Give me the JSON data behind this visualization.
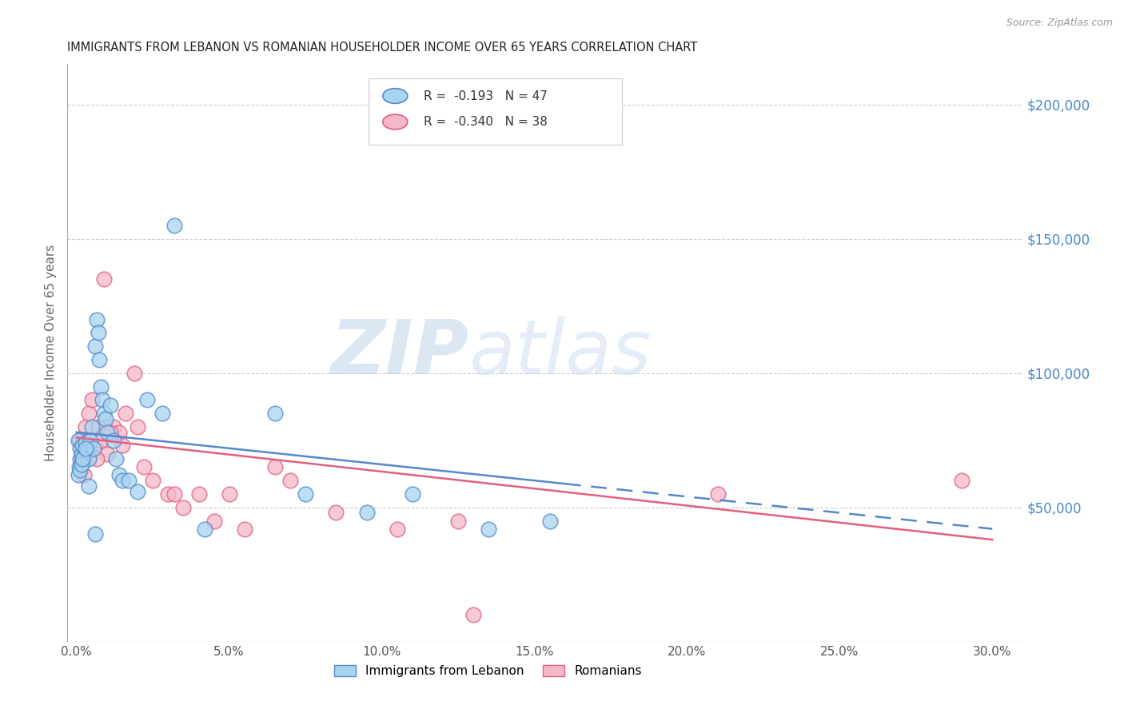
{
  "title": "IMMIGRANTS FROM LEBANON VS ROMANIAN HOUSEHOLDER INCOME OVER 65 YEARS CORRELATION CHART",
  "source": "Source: ZipAtlas.com",
  "ylabel": "Householder Income Over 65 years",
  "xlabel_ticks": [
    "0.0%",
    "5.0%",
    "10.0%",
    "15.0%",
    "20.0%",
    "25.0%",
    "30.0%"
  ],
  "xlabel_vals": [
    0.0,
    5.0,
    10.0,
    15.0,
    20.0,
    25.0,
    30.0
  ],
  "ytick_vals": [
    0,
    50000,
    100000,
    150000,
    200000
  ],
  "ytick_labels": [
    "",
    "$50,000",
    "$100,000",
    "$150,000",
    "$200,000"
  ],
  "ylim": [
    0,
    215000
  ],
  "xlim": [
    -0.3,
    31
  ],
  "series1_color": "#A8D4F0",
  "series2_color": "#F5B8C8",
  "trendline1_color": "#5588CC",
  "trendline2_color": "#E06080",
  "watermark_zip": "ZIP",
  "watermark_atlas": "atlas",
  "lebanon_x": [
    0.05,
    0.08,
    0.1,
    0.12,
    0.15,
    0.18,
    0.2,
    0.25,
    0.3,
    0.35,
    0.4,
    0.45,
    0.5,
    0.55,
    0.6,
    0.65,
    0.7,
    0.75,
    0.8,
    0.85,
    0.9,
    0.95,
    1.0,
    1.1,
    1.2,
    1.3,
    1.4,
    1.5,
    1.7,
    2.0,
    2.3,
    2.8,
    3.2,
    4.2,
    6.5,
    7.5,
    9.5,
    11.0,
    13.5,
    15.5,
    0.05,
    0.1,
    0.15,
    0.2,
    0.3,
    0.4,
    0.6
  ],
  "lebanon_y": [
    75000,
    65000,
    68000,
    72000,
    70000,
    67000,
    73000,
    69000,
    74000,
    71000,
    68000,
    75000,
    80000,
    72000,
    110000,
    120000,
    115000,
    105000,
    95000,
    90000,
    85000,
    83000,
    78000,
    88000,
    75000,
    68000,
    62000,
    60000,
    60000,
    56000,
    90000,
    85000,
    155000,
    42000,
    85000,
    55000,
    48000,
    55000,
    42000,
    45000,
    62000,
    64000,
    66000,
    68000,
    72000,
    58000,
    40000
  ],
  "romanian_x": [
    0.08,
    0.15,
    0.2,
    0.3,
    0.4,
    0.5,
    0.6,
    0.7,
    0.8,
    0.9,
    1.0,
    1.2,
    1.4,
    1.6,
    1.9,
    2.2,
    2.5,
    3.0,
    3.5,
    4.0,
    4.5,
    5.5,
    7.0,
    8.5,
    12.5,
    21.0,
    29.0,
    0.25,
    0.45,
    0.65,
    1.1,
    1.5,
    2.0,
    3.2,
    5.0,
    6.5,
    10.5,
    13.0
  ],
  "romanian_y": [
    75000,
    68000,
    72000,
    80000,
    85000,
    90000,
    73000,
    80000,
    75000,
    135000,
    70000,
    80000,
    78000,
    85000,
    100000,
    65000,
    60000,
    55000,
    50000,
    55000,
    45000,
    42000,
    60000,
    48000,
    45000,
    55000,
    60000,
    62000,
    70000,
    68000,
    78000,
    73000,
    80000,
    55000,
    55000,
    65000,
    42000,
    10000
  ],
  "trendline1_x0": 0,
  "trendline1_x1": 30,
  "trendline1_y0": 78000,
  "trendline1_y1": 42000,
  "trendline2_x0": 0,
  "trendline2_x1": 30,
  "trendline2_y0": 76000,
  "trendline2_y1": 38000
}
